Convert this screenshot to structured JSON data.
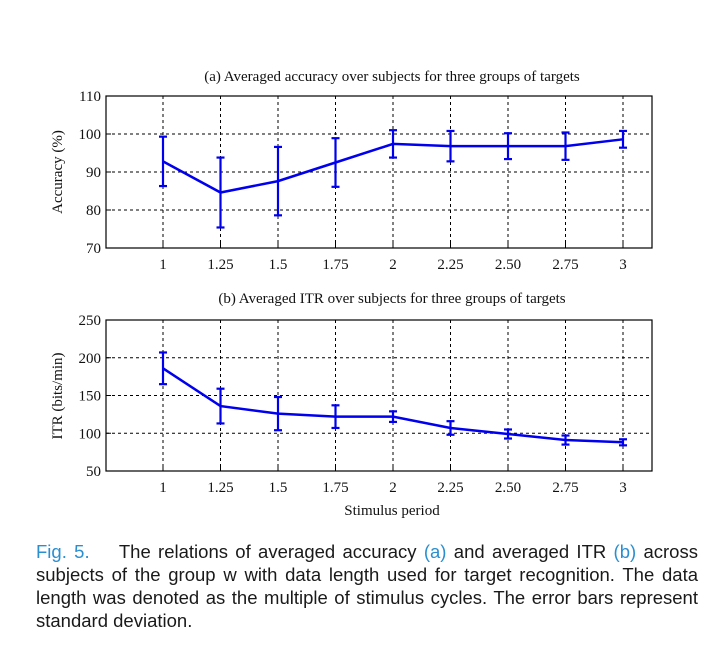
{
  "chart_data": [
    {
      "type": "line",
      "title": "(a) Averaged accuracy over subjects for three groups of targets",
      "xlabel": "",
      "ylabel": "Accuracy (%)",
      "categories": [
        "1",
        "1.25",
        "1.5",
        "1.75",
        "2",
        "2.25",
        "2.50",
        "2.75",
        "3"
      ],
      "yticks": [
        "70",
        "80",
        "90",
        "100",
        "110"
      ],
      "ylim": [
        70,
        110
      ],
      "grid": true,
      "series": [
        {
          "values": [
            92.8,
            84.6,
            87.6,
            92.5,
            97.4,
            96.8,
            96.8,
            96.8,
            98.6
          ],
          "errors": [
            6.5,
            9.2,
            9.0,
            6.4,
            3.6,
            4.0,
            3.4,
            3.6,
            2.2
          ],
          "color": "#0000ee"
        }
      ]
    },
    {
      "type": "line",
      "title": "(b) Averaged ITR over subjects for three groups of targets",
      "xlabel": "Stimulus period",
      "ylabel": "ITR (bits/min)",
      "categories": [
        "1",
        "1.25",
        "1.5",
        "1.75",
        "2",
        "2.25",
        "2.50",
        "2.75",
        "3"
      ],
      "yticks": [
        "50",
        "100",
        "150",
        "200",
        "250"
      ],
      "ylim": [
        50,
        250
      ],
      "grid": true,
      "series": [
        {
          "values": [
            186,
            136,
            126,
            122,
            122,
            107,
            99,
            91,
            88
          ],
          "errors": [
            21,
            23,
            22,
            15,
            7,
            9,
            6,
            6,
            4
          ],
          "color": "#0000ee"
        }
      ]
    }
  ],
  "caption": {
    "fig_label": "Fig. 5.",
    "t1": "The relations of averaged accuracy ",
    "a": "(a)",
    "t2": " and averaged ITR ",
    "b": "(b)",
    "t3": " across subjects of the group w with data length used for target recognition. The data length was denoted as the multiple of stimulus cycles. The error bars represent standard deviation."
  }
}
